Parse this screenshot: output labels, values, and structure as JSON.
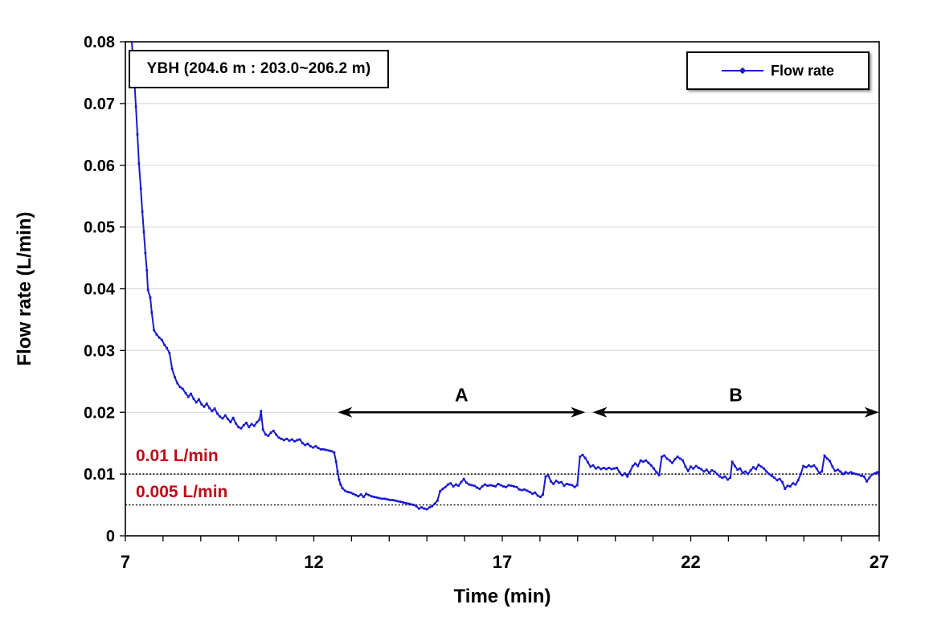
{
  "chart_data": {
    "type": "line",
    "title": "YBH (204.6 m : 203.0~206.2 m)",
    "xlabel": "Time (min)",
    "ylabel": "Flow rate (L/min)",
    "xlim": [
      7,
      27
    ],
    "ylim": [
      0,
      0.08
    ],
    "x_major_ticks": [
      7,
      12,
      17,
      22,
      27
    ],
    "x_minor_step": 1,
    "y_tick_step": 0.01,
    "y_tick_labels": [
      "0",
      "0.01",
      "0.02",
      "0.03",
      "0.04",
      "0.05",
      "0.06",
      "0.07",
      "0.08"
    ],
    "grid": "horizontal",
    "legend_position": "top-right",
    "colors": {
      "series": "#1a1ace",
      "reference_label": "#bf0a17",
      "gridline": "#dcdcdc",
      "axis": "#000000"
    },
    "reference_lines": [
      {
        "value": 0.01,
        "label": "0.01 L/min"
      },
      {
        "value": 0.005,
        "label": "0.005 L/min"
      }
    ],
    "annotations": [
      {
        "label": "A",
        "from": 12.67,
        "to": 19.17,
        "level": 0.02
      },
      {
        "label": "B",
        "from": 19.43,
        "to": 26.96,
        "level": 0.02
      }
    ],
    "series": [
      {
        "name": "Flow rate",
        "color": "#1a1ace",
        "marker": "square",
        "points": [
          [
            7.17,
            0.08
          ],
          [
            7.22,
            0.0757
          ],
          [
            7.28,
            0.0695
          ],
          [
            7.32,
            0.065
          ],
          [
            7.36,
            0.0603
          ],
          [
            7.41,
            0.0562
          ],
          [
            7.45,
            0.0525
          ],
          [
            7.49,
            0.0492
          ],
          [
            7.53,
            0.0458
          ],
          [
            7.57,
            0.043
          ],
          [
            7.6,
            0.0398
          ],
          [
            7.66,
            0.0386
          ],
          [
            7.7,
            0.0362
          ],
          [
            7.76,
            0.0333
          ],
          [
            7.83,
            0.0326
          ],
          [
            7.9,
            0.0321
          ],
          [
            7.97,
            0.0317
          ],
          [
            8.04,
            0.0309
          ],
          [
            8.1,
            0.0304
          ],
          [
            8.17,
            0.0296
          ],
          [
            8.24,
            0.027
          ],
          [
            8.31,
            0.0257
          ],
          [
            8.38,
            0.0247
          ],
          [
            8.45,
            0.0241
          ],
          [
            8.52,
            0.0238
          ],
          [
            8.6,
            0.0231
          ],
          [
            8.67,
            0.0225
          ],
          [
            8.74,
            0.023
          ],
          [
            8.81,
            0.0222
          ],
          [
            8.88,
            0.0216
          ],
          [
            8.95,
            0.0221
          ],
          [
            9.02,
            0.0213
          ],
          [
            9.09,
            0.0209
          ],
          [
            9.16,
            0.0214
          ],
          [
            9.23,
            0.0207
          ],
          [
            9.3,
            0.0202
          ],
          [
            9.37,
            0.0206
          ],
          [
            9.44,
            0.0198
          ],
          [
            9.51,
            0.0193
          ],
          [
            9.58,
            0.019
          ],
          [
            9.65,
            0.0195
          ],
          [
            9.72,
            0.0189
          ],
          [
            9.79,
            0.0184
          ],
          [
            9.86,
            0.0191
          ],
          [
            9.93,
            0.0182
          ],
          [
            10.0,
            0.0176
          ],
          [
            10.07,
            0.0174
          ],
          [
            10.14,
            0.0179
          ],
          [
            10.21,
            0.0183
          ],
          [
            10.28,
            0.0176
          ],
          [
            10.35,
            0.0181
          ],
          [
            10.42,
            0.0178
          ],
          [
            10.49,
            0.0184
          ],
          [
            10.56,
            0.0188
          ],
          [
            10.6,
            0.0202
          ],
          [
            10.65,
            0.0172
          ],
          [
            10.72,
            0.0164
          ],
          [
            10.79,
            0.0162
          ],
          [
            10.86,
            0.0167
          ],
          [
            10.93,
            0.017
          ],
          [
            11.0,
            0.0164
          ],
          [
            11.07,
            0.0159
          ],
          [
            11.14,
            0.0157
          ],
          [
            11.21,
            0.0155
          ],
          [
            11.28,
            0.0157
          ],
          [
            11.35,
            0.0154
          ],
          [
            11.42,
            0.0156
          ],
          [
            11.49,
            0.0153
          ],
          [
            11.56,
            0.0155
          ],
          [
            11.63,
            0.0156
          ],
          [
            11.7,
            0.015
          ],
          [
            11.77,
            0.0147
          ],
          [
            11.84,
            0.0149
          ],
          [
            11.91,
            0.0145
          ],
          [
            11.98,
            0.0143
          ],
          [
            12.05,
            0.0145
          ],
          [
            12.12,
            0.0142
          ],
          [
            12.19,
            0.014
          ],
          [
            12.26,
            0.014
          ],
          [
            12.33,
            0.0139
          ],
          [
            12.4,
            0.0138
          ],
          [
            12.47,
            0.0137
          ],
          [
            12.54,
            0.0135
          ],
          [
            12.59,
            0.012
          ],
          [
            12.63,
            0.0104
          ],
          [
            12.67,
            0.0091
          ],
          [
            12.71,
            0.0083
          ],
          [
            12.76,
            0.0077
          ],
          [
            12.83,
            0.0073
          ],
          [
            12.9,
            0.0071
          ],
          [
            12.97,
            0.007
          ],
          [
            13.04,
            0.0068
          ],
          [
            13.11,
            0.0066
          ],
          [
            13.18,
            0.0064
          ],
          [
            13.25,
            0.0067
          ],
          [
            13.32,
            0.0063
          ],
          [
            13.39,
            0.0068
          ],
          [
            13.46,
            0.0066
          ],
          [
            13.53,
            0.0064
          ],
          [
            13.6,
            0.0063
          ],
          [
            13.67,
            0.0062
          ],
          [
            13.74,
            0.0061
          ],
          [
            13.81,
            0.006
          ],
          [
            13.88,
            0.006
          ],
          [
            13.95,
            0.0059
          ],
          [
            14.02,
            0.0058
          ],
          [
            14.09,
            0.0058
          ],
          [
            14.16,
            0.0057
          ],
          [
            14.23,
            0.0056
          ],
          [
            14.3,
            0.0055
          ],
          [
            14.37,
            0.0054
          ],
          [
            14.44,
            0.0053
          ],
          [
            14.51,
            0.0052
          ],
          [
            14.58,
            0.0051
          ],
          [
            14.65,
            0.005
          ],
          [
            14.72,
            0.0048
          ],
          [
            14.79,
            0.0044
          ],
          [
            14.86,
            0.0046
          ],
          [
            14.93,
            0.0044
          ],
          [
            15.0,
            0.0043
          ],
          [
            15.07,
            0.0046
          ],
          [
            15.14,
            0.0048
          ],
          [
            15.21,
            0.0052
          ],
          [
            15.28,
            0.0057
          ],
          [
            15.35,
            0.0072
          ],
          [
            15.42,
            0.0076
          ],
          [
            15.49,
            0.0079
          ],
          [
            15.56,
            0.0083
          ],
          [
            15.63,
            0.0085
          ],
          [
            15.7,
            0.008
          ],
          [
            15.77,
            0.0083
          ],
          [
            15.84,
            0.0081
          ],
          [
            15.91,
            0.0087
          ],
          [
            15.98,
            0.0092
          ],
          [
            16.05,
            0.0086
          ],
          [
            16.12,
            0.0083
          ],
          [
            16.19,
            0.0082
          ],
          [
            16.26,
            0.0081
          ],
          [
            16.33,
            0.0078
          ],
          [
            16.4,
            0.0076
          ],
          [
            16.47,
            0.008
          ],
          [
            16.54,
            0.0083
          ],
          [
            16.61,
            0.0081
          ],
          [
            16.68,
            0.0082
          ],
          [
            16.75,
            0.0081
          ],
          [
            16.82,
            0.008
          ],
          [
            16.89,
            0.0084
          ],
          [
            16.96,
            0.0082
          ],
          [
            17.03,
            0.008
          ],
          [
            17.1,
            0.0079
          ],
          [
            17.17,
            0.0082
          ],
          [
            17.24,
            0.0081
          ],
          [
            17.31,
            0.008
          ],
          [
            17.38,
            0.0079
          ],
          [
            17.45,
            0.0075
          ],
          [
            17.52,
            0.0074
          ],
          [
            17.59,
            0.0075
          ],
          [
            17.66,
            0.0073
          ],
          [
            17.73,
            0.0071
          ],
          [
            17.8,
            0.0068
          ],
          [
            17.87,
            0.007
          ],
          [
            17.94,
            0.0065
          ],
          [
            18.01,
            0.0063
          ],
          [
            18.08,
            0.0067
          ],
          [
            18.15,
            0.0096
          ],
          [
            18.22,
            0.0098
          ],
          [
            18.29,
            0.0088
          ],
          [
            18.36,
            0.0084
          ],
          [
            18.43,
            0.0089
          ],
          [
            18.5,
            0.0086
          ],
          [
            18.57,
            0.0087
          ],
          [
            18.64,
            0.0081
          ],
          [
            18.71,
            0.0084
          ],
          [
            18.78,
            0.0083
          ],
          [
            18.85,
            0.0082
          ],
          [
            18.92,
            0.0079
          ],
          [
            18.99,
            0.0082
          ],
          [
            19.06,
            0.0128
          ],
          [
            19.13,
            0.0131
          ],
          [
            19.2,
            0.0126
          ],
          [
            19.27,
            0.0119
          ],
          [
            19.34,
            0.0112
          ],
          [
            19.41,
            0.0114
          ],
          [
            19.48,
            0.0109
          ],
          [
            19.55,
            0.0111
          ],
          [
            19.62,
            0.0108
          ],
          [
            19.69,
            0.011
          ],
          [
            19.76,
            0.0108
          ],
          [
            19.83,
            0.011
          ],
          [
            19.9,
            0.0108
          ],
          [
            19.97,
            0.0109
          ],
          [
            20.04,
            0.011
          ],
          [
            20.11,
            0.0103
          ],
          [
            20.18,
            0.0098
          ],
          [
            20.25,
            0.0101
          ],
          [
            20.32,
            0.0096
          ],
          [
            20.39,
            0.0104
          ],
          [
            20.46,
            0.0113
          ],
          [
            20.53,
            0.0117
          ],
          [
            20.6,
            0.0113
          ],
          [
            20.67,
            0.0122
          ],
          [
            20.74,
            0.012
          ],
          [
            20.81,
            0.0122
          ],
          [
            20.88,
            0.0118
          ],
          [
            20.95,
            0.0114
          ],
          [
            21.02,
            0.0109
          ],
          [
            21.09,
            0.0103
          ],
          [
            21.16,
            0.0098
          ],
          [
            21.23,
            0.0128
          ],
          [
            21.3,
            0.013
          ],
          [
            21.37,
            0.0125
          ],
          [
            21.44,
            0.0122
          ],
          [
            21.51,
            0.0118
          ],
          [
            21.58,
            0.0124
          ],
          [
            21.65,
            0.0128
          ],
          [
            21.72,
            0.0125
          ],
          [
            21.79,
            0.0122
          ],
          [
            21.86,
            0.0112
          ],
          [
            21.93,
            0.0105
          ],
          [
            22.0,
            0.0112
          ],
          [
            22.07,
            0.0109
          ],
          [
            22.14,
            0.0113
          ],
          [
            22.21,
            0.011
          ],
          [
            22.28,
            0.0108
          ],
          [
            22.35,
            0.0104
          ],
          [
            22.42,
            0.0107
          ],
          [
            22.49,
            0.0102
          ],
          [
            22.56,
            0.0106
          ],
          [
            22.63,
            0.0104
          ],
          [
            22.7,
            0.01
          ],
          [
            22.77,
            0.0096
          ],
          [
            22.84,
            0.0094
          ],
          [
            22.91,
            0.0096
          ],
          [
            22.98,
            0.0091
          ],
          [
            23.05,
            0.0094
          ],
          [
            23.1,
            0.012
          ],
          [
            23.17,
            0.0113
          ],
          [
            23.24,
            0.0107
          ],
          [
            23.31,
            0.0109
          ],
          [
            23.38,
            0.0102
          ],
          [
            23.45,
            0.0104
          ],
          [
            23.52,
            0.01
          ],
          [
            23.59,
            0.0106
          ],
          [
            23.66,
            0.0111
          ],
          [
            23.73,
            0.0108
          ],
          [
            23.8,
            0.0115
          ],
          [
            23.87,
            0.0112
          ],
          [
            23.94,
            0.0109
          ],
          [
            24.01,
            0.0104
          ],
          [
            24.08,
            0.01
          ],
          [
            24.15,
            0.0097
          ],
          [
            24.22,
            0.0094
          ],
          [
            24.29,
            0.009
          ],
          [
            24.36,
            0.0092
          ],
          [
            24.43,
            0.0087
          ],
          [
            24.5,
            0.0076
          ],
          [
            24.57,
            0.0081
          ],
          [
            24.64,
            0.008
          ],
          [
            24.71,
            0.0085
          ],
          [
            24.78,
            0.0083
          ],
          [
            24.85,
            0.009
          ],
          [
            24.92,
            0.01
          ],
          [
            24.99,
            0.0113
          ],
          [
            25.06,
            0.0111
          ],
          [
            25.13,
            0.0114
          ],
          [
            25.2,
            0.0112
          ],
          [
            25.27,
            0.0114
          ],
          [
            25.34,
            0.0109
          ],
          [
            25.41,
            0.0102
          ],
          [
            25.48,
            0.0104
          ],
          [
            25.55,
            0.013
          ],
          [
            25.62,
            0.0125
          ],
          [
            25.69,
            0.0121
          ],
          [
            25.76,
            0.0112
          ],
          [
            25.83,
            0.0105
          ],
          [
            25.9,
            0.0107
          ],
          [
            25.97,
            0.0104
          ],
          [
            26.04,
            0.01
          ],
          [
            26.11,
            0.0103
          ],
          [
            26.18,
            0.0101
          ],
          [
            26.25,
            0.0103
          ],
          [
            26.32,
            0.0101
          ],
          [
            26.39,
            0.01
          ],
          [
            26.46,
            0.0099
          ],
          [
            26.53,
            0.0097
          ],
          [
            26.6,
            0.0096
          ],
          [
            26.67,
            0.0088
          ],
          [
            26.74,
            0.0094
          ],
          [
            26.81,
            0.0099
          ],
          [
            26.88,
            0.0101
          ],
          [
            26.95,
            0.0103
          ],
          [
            27.0,
            0.0098
          ]
        ]
      }
    ]
  }
}
